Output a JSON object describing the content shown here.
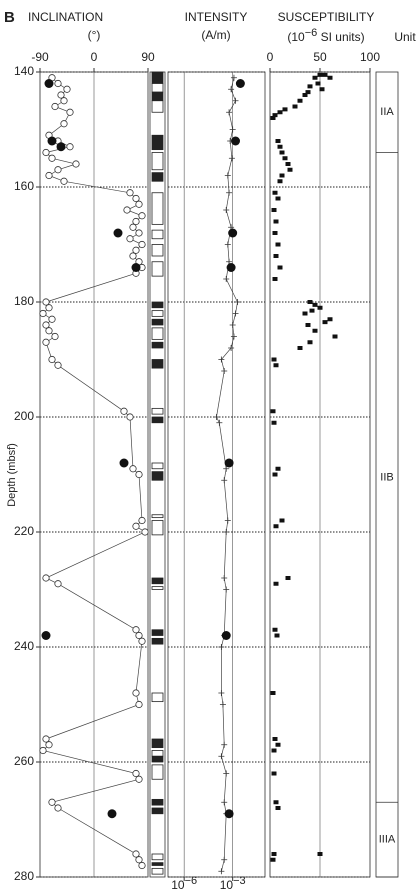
{
  "chart_data": {
    "type": "well-log",
    "panel_label": "B",
    "y_label": "Depth (mbsf)",
    "ylim": [
      140,
      280
    ],
    "yticks": [
      140,
      160,
      180,
      200,
      220,
      240,
      260,
      280
    ],
    "grid": true,
    "inclination": {
      "title": "INCLINATION",
      "unit": "(°)",
      "xlim": [
        -90,
        90
      ],
      "xticks": [
        -90,
        0,
        90
      ],
      "vgrid": true,
      "circles": {
        "depth": [
          141,
          142,
          143,
          144,
          145,
          146,
          147,
          149,
          151,
          152,
          153,
          154,
          155,
          156,
          157,
          158,
          159,
          161,
          162,
          163,
          164,
          165,
          166,
          167,
          168,
          169,
          170,
          171,
          172,
          173,
          174,
          175,
          180,
          181,
          182,
          183,
          184,
          185,
          186,
          187,
          190,
          191,
          199,
          200,
          209,
          210,
          218,
          219,
          220,
          228,
          229,
          237,
          238,
          239,
          248,
          250,
          256,
          257,
          258,
          262,
          263,
          267,
          268,
          276,
          277,
          278
        ],
        "values": [
          -70,
          -60,
          -45,
          -55,
          -50,
          -65,
          -40,
          -50,
          -75,
          -60,
          -40,
          -80,
          -70,
          -30,
          -60,
          -75,
          -50,
          60,
          70,
          75,
          55,
          80,
          70,
          65,
          75,
          60,
          80,
          70,
          65,
          75,
          80,
          70,
          -80,
          -75,
          -85,
          -70,
          -80,
          -75,
          -65,
          -80,
          -70,
          -60,
          50,
          60,
          65,
          75,
          80,
          70,
          85,
          -80,
          -60,
          70,
          75,
          80,
          70,
          75,
          -80,
          -75,
          -85,
          70,
          75,
          -70,
          -60,
          70,
          75,
          80
        ]
      },
      "discrete": {
        "depth": [
          142,
          152,
          153,
          168,
          174,
          208,
          238,
          269
        ],
        "values": [
          -75,
          -70,
          -55,
          40,
          70,
          50,
          -80,
          30
        ]
      }
    },
    "polarity": {
      "blocks": [
        {
          "top": 140,
          "bottom": 142,
          "color": "#222"
        },
        {
          "top": 142,
          "bottom": 143.5,
          "color": "#fff"
        },
        {
          "top": 143.5,
          "bottom": 145,
          "color": "#222"
        },
        {
          "top": 145,
          "bottom": 147,
          "color": "#fff"
        },
        {
          "top": 151,
          "bottom": 153.5,
          "color": "#222"
        },
        {
          "top": 154,
          "bottom": 157,
          "color": "#fff"
        },
        {
          "top": 157.5,
          "bottom": 159,
          "color": "#222"
        },
        {
          "top": 161,
          "bottom": 166.5,
          "color": "#fff"
        },
        {
          "top": 167.5,
          "bottom": 169,
          "color": "#fff"
        },
        {
          "top": 170,
          "bottom": 172,
          "color": "#fff"
        },
        {
          "top": 173,
          "bottom": 175.5,
          "color": "#fff"
        },
        {
          "top": 180,
          "bottom": 181,
          "color": "#222"
        },
        {
          "top": 181.5,
          "bottom": 182.5,
          "color": "#fff"
        },
        {
          "top": 183,
          "bottom": 184,
          "color": "#222"
        },
        {
          "top": 184.5,
          "bottom": 186.5,
          "color": "#fff"
        },
        {
          "top": 187,
          "bottom": 188,
          "color": "#222"
        },
        {
          "top": 190,
          "bottom": 191.5,
          "color": "#222"
        },
        {
          "top": 198.5,
          "bottom": 199.5,
          "color": "#fff"
        },
        {
          "top": 200,
          "bottom": 201,
          "color": "#222"
        },
        {
          "top": 208,
          "bottom": 209,
          "color": "#fff"
        },
        {
          "top": 209.5,
          "bottom": 211,
          "color": "#222"
        },
        {
          "top": 217,
          "bottom": 217.5,
          "color": "#fff"
        },
        {
          "top": 218,
          "bottom": 220.5,
          "color": "#fff"
        },
        {
          "top": 228,
          "bottom": 229,
          "color": "#222"
        },
        {
          "top": 229.5,
          "bottom": 230,
          "color": "#fff"
        },
        {
          "top": 237,
          "bottom": 238,
          "color": "#222"
        },
        {
          "top": 238.5,
          "bottom": 239.5,
          "color": "#222"
        },
        {
          "top": 248,
          "bottom": 249.5,
          "color": "#fff"
        },
        {
          "top": 256,
          "bottom": 257.5,
          "color": "#222"
        },
        {
          "top": 258,
          "bottom": 259,
          "color": "#fff"
        },
        {
          "top": 259,
          "bottom": 260,
          "color": "#222"
        },
        {
          "top": 260.5,
          "bottom": 263,
          "color": "#fff"
        },
        {
          "top": 266.5,
          "bottom": 267.5,
          "color": "#222"
        },
        {
          "top": 268,
          "bottom": 269,
          "color": "#222"
        },
        {
          "top": 276,
          "bottom": 277,
          "color": "#fff"
        },
        {
          "top": 277.5,
          "bottom": 278,
          "color": "#222"
        },
        {
          "top": 278.5,
          "bottom": 279.5,
          "color": "#fff"
        }
      ]
    },
    "intensity": {
      "title": "INTENSITY",
      "unit": "(A/m)",
      "log": true,
      "xlim": [
        1e-07,
        0.1
      ],
      "xticks": [
        {
          "value": 1e-06,
          "label": "10",
          "exponent": "−6"
        },
        {
          "value": 0.001,
          "label": "10",
          "exponent": "−3"
        }
      ],
      "vgrid": true,
      "line": {
        "depth": [
          141,
          143,
          145,
          147,
          150,
          152,
          155,
          158,
          161,
          164,
          167,
          170,
          173,
          176,
          180,
          182,
          184,
          186,
          188,
          190,
          192,
          200,
          201,
          209,
          211,
          218,
          220,
          228,
          230,
          238,
          240,
          248,
          250,
          257,
          259,
          262,
          267,
          269,
          277,
          279
        ],
        "values": [
          0.0012,
          0.0008,
          0.0015,
          0.0006,
          0.001,
          0.0007,
          0.0009,
          0.0005,
          0.0006,
          0.0004,
          0.0008,
          0.0005,
          0.0006,
          0.0004,
          0.002,
          0.0015,
          0.001,
          0.0012,
          0.0008,
          0.0002,
          0.0003,
          0.0001,
          0.00015,
          0.0004,
          0.0003,
          0.0005,
          0.0004,
          0.0003,
          0.0004,
          0.0003,
          0.0002,
          0.0002,
          0.00025,
          0.0003,
          0.0002,
          0.0004,
          0.0003,
          0.0004,
          0.0003,
          0.0002
        ]
      },
      "discrete": {
        "depth": [
          142,
          152,
          168,
          174,
          208,
          238,
          269
        ],
        "values": [
          0.003,
          0.0015,
          0.001,
          0.0008,
          0.0006,
          0.0004,
          0.0006
        ]
      }
    },
    "susceptibility": {
      "title": "SUSCEPTIBILITY",
      "unit_prefix": "(10",
      "unit_exponent": "−6",
      "unit_suffix": " SI units)",
      "xlim": [
        0,
        100
      ],
      "xticks": [
        0,
        50,
        100
      ],
      "vgrid": true,
      "points": {
        "depth": [
          140.5,
          140.5,
          141,
          141,
          142,
          142.5,
          143,
          143.5,
          144,
          145,
          146,
          146.5,
          147,
          147.5,
          148,
          152,
          153,
          154,
          155,
          156,
          157,
          158,
          159,
          161,
          162,
          164,
          166,
          168,
          170,
          172,
          174,
          176,
          180,
          180.5,
          181,
          181.5,
          182,
          183,
          183.5,
          184,
          185,
          186,
          187,
          188,
          190,
          191,
          199,
          201,
          209,
          210,
          218,
          219,
          228,
          229,
          237,
          238,
          248,
          256,
          257,
          258,
          262,
          267,
          268,
          276,
          277,
          276
        ],
        "values": [
          50,
          55,
          45,
          60,
          48,
          40,
          52,
          38,
          35,
          30,
          25,
          15,
          10,
          5,
          3,
          8,
          10,
          12,
          15,
          18,
          20,
          12,
          10,
          5,
          8,
          4,
          6,
          5,
          8,
          6,
          10,
          5,
          40,
          45,
          50,
          42,
          35,
          60,
          55,
          38,
          45,
          65,
          40,
          30,
          4,
          6,
          3,
          4,
          8,
          5,
          12,
          6,
          18,
          6,
          5,
          7,
          3,
          5,
          8,
          4,
          4,
          6,
          8,
          4,
          3,
          50
        ]
      }
    },
    "units": {
      "header": "Unit",
      "intervals": [
        {
          "name": "IIA",
          "top": 140,
          "bottom": 154
        },
        {
          "name": "IIB",
          "top": 154,
          "bottom": 267
        },
        {
          "name": "IIIA",
          "top": 267,
          "bottom": 280
        }
      ]
    }
  }
}
